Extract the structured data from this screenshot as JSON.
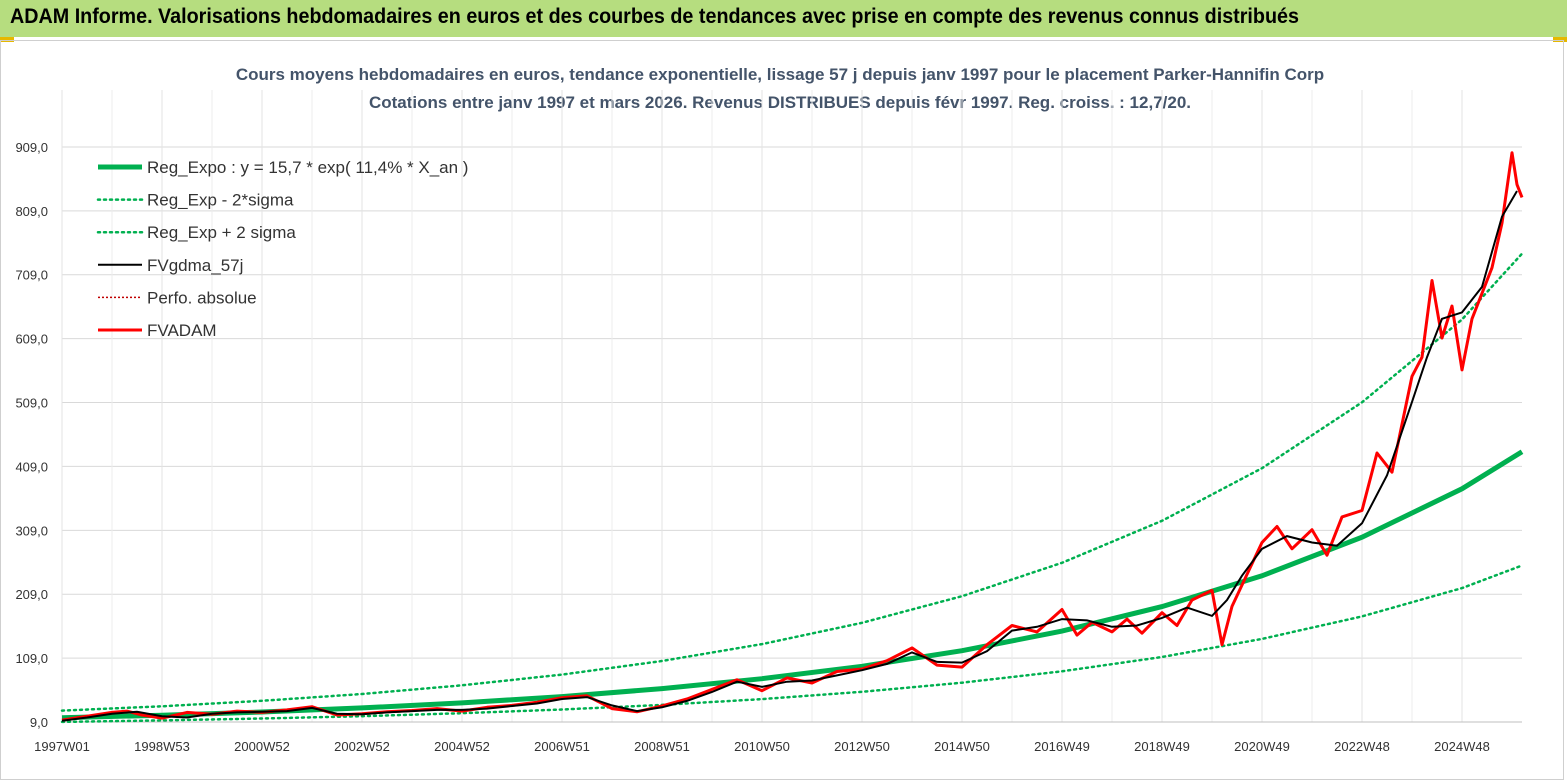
{
  "header": {
    "title": "ADAM Informe. Valorisations hebdomadaires en euros et des courbes de tendances avec prise en compte des revenus connus distribués"
  },
  "chart_data": {
    "type": "line",
    "title": "Cours moyens hebdomadaires en euros, tendance exponentielle, lissage 57 j depuis janv 1997 pour le placement Parker-Hannifin Corp",
    "subtitle": "Cotations entre janv 1997 et mars 2026. Revenus DISTRIBUES depuis févr 1997. Reg. croiss. : 12,7/20.",
    "xlabel": "",
    "ylabel": "",
    "x_range": [
      1997.0,
      2026.2
    ],
    "ylim": [
      9,
      959
    ],
    "y_ticks": [
      9,
      109,
      209,
      309,
      409,
      509,
      609,
      709,
      809,
      909
    ],
    "y_tick_labels": [
      "9,0",
      "109,0",
      "209,0",
      "309,0",
      "409,0",
      "509,0",
      "609,0",
      "709,0",
      "809,0",
      "909,0"
    ],
    "x_ticks": [
      1997.0,
      1999.0,
      2001.0,
      2003.0,
      2005.0,
      2007.0,
      2009.0,
      2011.0,
      2013.0,
      2015.0,
      2017.0,
      2019.0,
      2021.0,
      2023.0,
      2025.0
    ],
    "x_tick_labels": [
      "1997W01",
      "1998W53",
      "2000W52",
      "2002W52",
      "2004W52",
      "2006W51",
      "2008W51",
      "2010W50",
      "2012W50",
      "2014W50",
      "2016W49",
      "2018W49",
      "2020W49",
      "2022W48",
      "2024W48"
    ],
    "grid": true,
    "legend_position": "top-left",
    "colors": {
      "regression": "#00b050",
      "sigma": "#00b050",
      "smoothed": "#000000",
      "perf": "#c00000",
      "fvadam": "#ff0000"
    },
    "series": [
      {
        "name": "Reg_Expo : y = 15,7 * exp( 11,4% *  X_an )",
        "style": "thick-solid",
        "x": [
          1997,
          1999,
          2001,
          2003,
          2005,
          2007,
          2009,
          2011,
          2013,
          2015,
          2017,
          2019,
          2021,
          2023,
          2025,
          2026.2
        ],
        "values": [
          15.7,
          19.7,
          24.7,
          31.0,
          38.9,
          48.8,
          61.2,
          76.7,
          96.2,
          120.6,
          151.2,
          189.6,
          237.8,
          298.2,
          374.0,
          432.0
        ]
      },
      {
        "name": "Reg_Exp - 2*sigma",
        "style": "dotted",
        "x": [
          1997,
          1999,
          2001,
          2003,
          2005,
          2007,
          2009,
          2011,
          2013,
          2015,
          2017,
          2019,
          2021,
          2023,
          2025,
          2026.2
        ],
        "values": [
          9.2,
          11.5,
          14.4,
          18.1,
          22.7,
          28.5,
          35.7,
          44.8,
          56.2,
          70.5,
          88.4,
          110.8,
          139.0,
          174.3,
          218.6,
          254.0
        ]
      },
      {
        "name": "Reg_Exp + 2 sigma",
        "style": "dotted",
        "x": [
          1997,
          1999,
          2001,
          2003,
          2005,
          2007,
          2009,
          2011,
          2013,
          2015,
          2017,
          2019,
          2021,
          2023,
          2025,
          2026.2
        ],
        "values": [
          26.8,
          33.6,
          42.2,
          52.9,
          66.4,
          83.2,
          104.4,
          130.9,
          164.2,
          205.9,
          258.2,
          323.9,
          406.2,
          509.4,
          638.9,
          742.0
        ]
      },
      {
        "name": "FVgdma_57j",
        "style": "thin-solid",
        "x": [
          1997.0,
          1997.5,
          1998.0,
          1998.5,
          1999.0,
          1999.5,
          2000.0,
          2000.5,
          2001.0,
          2001.5,
          2002.0,
          2002.5,
          2003.0,
          2003.5,
          2004.0,
          2004.5,
          2005.0,
          2005.5,
          2006.0,
          2006.5,
          2007.0,
          2007.5,
          2008.0,
          2008.5,
          2009.0,
          2009.5,
          2010.0,
          2010.5,
          2011.0,
          2011.5,
          2012.0,
          2012.5,
          2013.0,
          2013.5,
          2014.0,
          2014.5,
          2015.0,
          2015.5,
          2016.0,
          2016.5,
          2017.0,
          2017.5,
          2018.0,
          2018.5,
          2019.0,
          2019.5,
          2020.0,
          2020.3,
          2020.6,
          2021.0,
          2021.5,
          2022.0,
          2022.5,
          2023.0,
          2023.5,
          2024.0,
          2024.3,
          2024.6,
          2025.0,
          2025.4,
          2025.8,
          2026.1
        ],
        "values": [
          11,
          16,
          22,
          25,
          18,
          16,
          22,
          24,
          25,
          26,
          31,
          22,
          21,
          24,
          26,
          28,
          28,
          30,
          34,
          38,
          45,
          48,
          35,
          26,
          32,
          42,
          56,
          72,
          64,
          72,
          74,
          82,
          90,
          100,
          118,
          103,
          102,
          120,
          152,
          158,
          170,
          168,
          158,
          160,
          172,
          188,
          175,
          200,
          238,
          280,
          300,
          290,
          285,
          320,
          395,
          510,
          580,
          640,
          650,
          690,
          800,
          840
        ]
      },
      {
        "name": "Perfo. absolue",
        "style": "dotted",
        "x": [],
        "values": []
      },
      {
        "name": "FVADAM",
        "style": "thick-solid",
        "x": [
          1997.0,
          1997.5,
          1998.0,
          1998.3,
          1998.6,
          1999.0,
          1999.5,
          2000.0,
          2000.5,
          2001.0,
          2001.5,
          2002.0,
          2002.5,
          2003.0,
          2003.5,
          2004.0,
          2004.5,
          2005.0,
          2005.5,
          2006.0,
          2006.5,
          2007.0,
          2007.5,
          2008.0,
          2008.5,
          2009.0,
          2009.5,
          2010.0,
          2010.5,
          2011.0,
          2011.5,
          2012.0,
          2012.5,
          2013.0,
          2013.5,
          2014.0,
          2014.5,
          2015.0,
          2015.5,
          2016.0,
          2016.5,
          2017.0,
          2017.3,
          2017.6,
          2018.0,
          2018.3,
          2018.6,
          2019.0,
          2019.3,
          2019.6,
          2020.0,
          2020.2,
          2020.4,
          2020.7,
          2021.0,
          2021.3,
          2021.6,
          2022.0,
          2022.3,
          2022.6,
          2023.0,
          2023.3,
          2023.6,
          2024.0,
          2024.2,
          2024.4,
          2024.6,
          2024.8,
          2025.0,
          2025.2,
          2025.4,
          2025.6,
          2025.8,
          2026.0,
          2026.1,
          2026.2
        ],
        "values": [
          12,
          18,
          24,
          26,
          20,
          15,
          24,
          21,
          26,
          24,
          28,
          33,
          20,
          22,
          25,
          27,
          30,
          26,
          32,
          35,
          40,
          47,
          50,
          30,
          25,
          34,
          45,
          60,
          75,
          58,
          78,
          70,
          88,
          92,
          105,
          125,
          98,
          95,
          130,
          160,
          150,
          185,
          145,
          165,
          150,
          170,
          148,
          180,
          160,
          200,
          215,
          130,
          190,
          240,
          290,
          315,
          280,
          310,
          270,
          330,
          340,
          430,
          400,
          550,
          580,
          700,
          610,
          660,
          560,
          640,
          680,
          720,
          790,
          900,
          850,
          830
        ]
      }
    ]
  }
}
